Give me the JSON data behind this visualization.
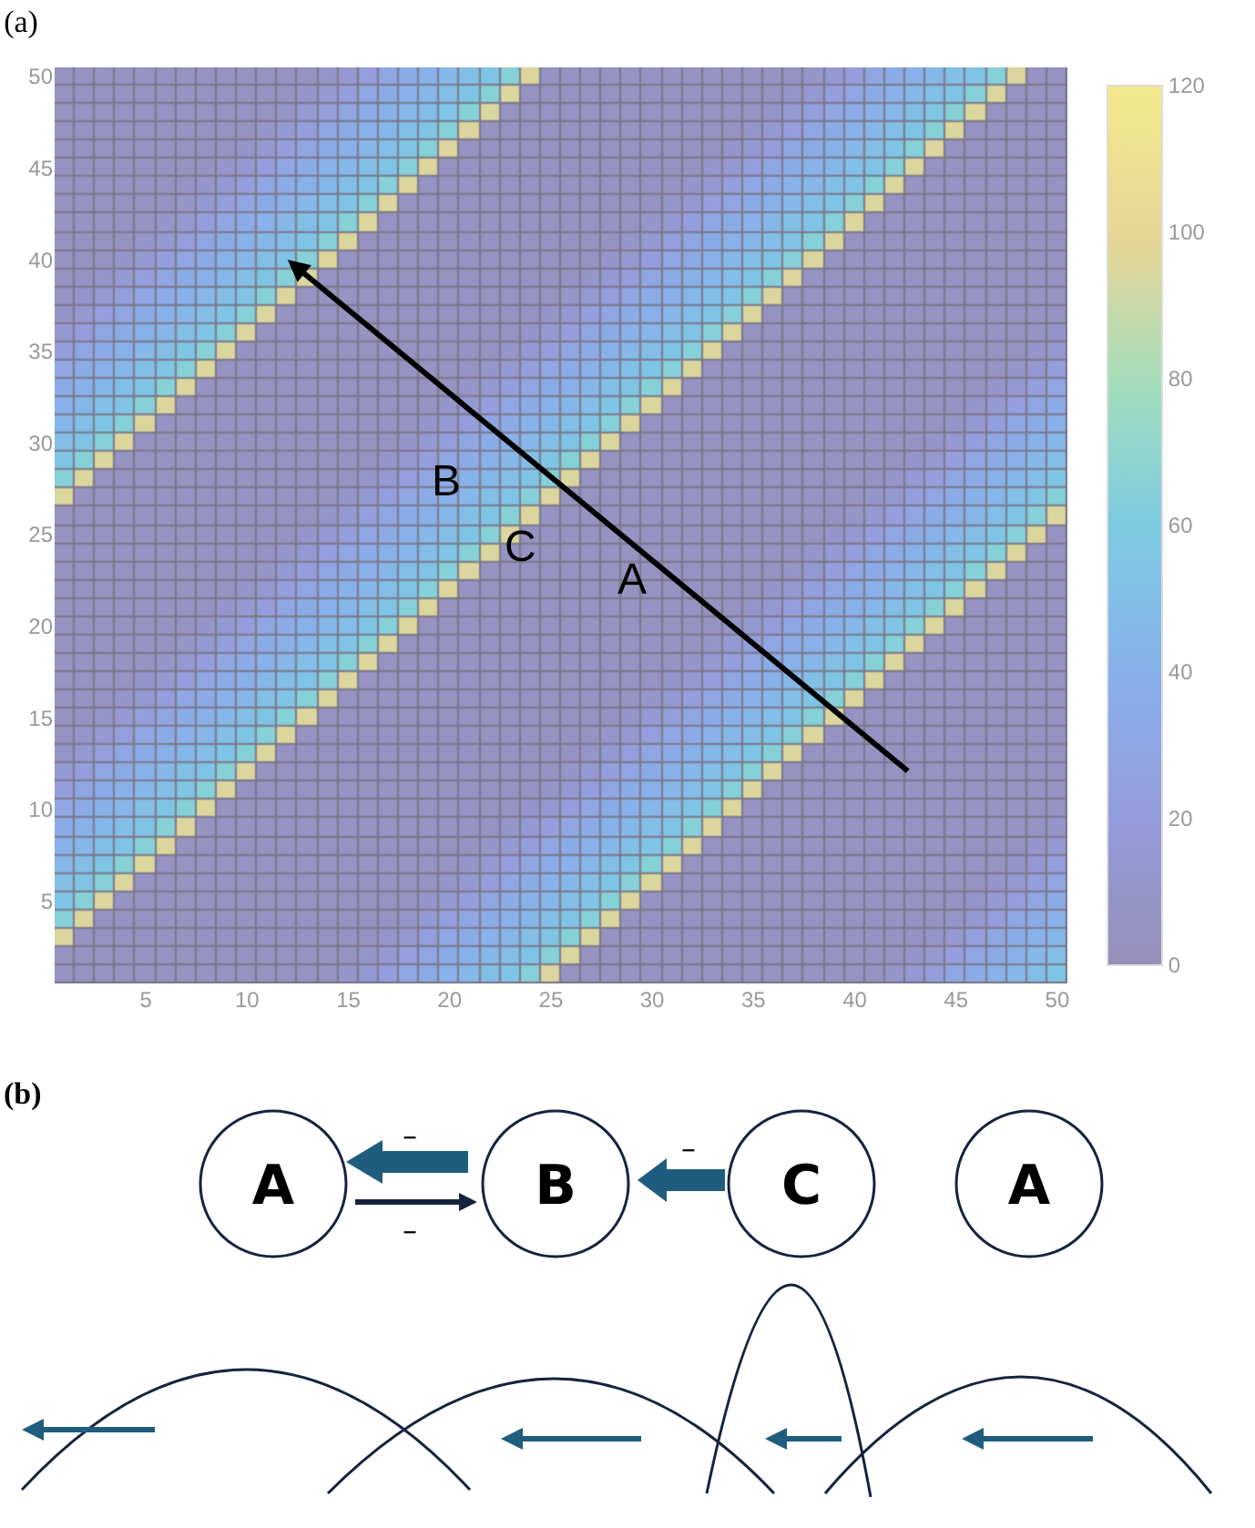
{
  "chart_data": [
    {
      "type": "heatmap",
      "title": "(a)",
      "categories": [
        null,
        null,
        null,
        null,
        "5",
        null,
        null,
        null,
        null,
        "10",
        null,
        null,
        null,
        null,
        "15",
        null,
        null,
        null,
        null,
        "20",
        null,
        null,
        null,
        null,
        "25",
        null,
        null,
        null,
        null,
        "30",
        null,
        null,
        null,
        null,
        "35",
        null,
        null,
        null,
        null,
        "40",
        null,
        null,
        null,
        null,
        "45",
        null,
        null,
        null,
        null,
        "50"
      ],
      "y_categories": [
        "50",
        null,
        null,
        null,
        null,
        "45",
        null,
        null,
        null,
        null,
        "40",
        null,
        null,
        null,
        null,
        "35",
        null,
        null,
        null,
        null,
        "30",
        null,
        null,
        null,
        null,
        "25",
        null,
        null,
        null,
        null,
        "20",
        null,
        null,
        null,
        null,
        "15",
        null,
        null,
        null,
        null,
        "10",
        null,
        null,
        null,
        null,
        "5",
        null,
        null,
        null,
        null
      ],
      "clim": [
        0,
        120
      ],
      "cticks": [
        0,
        20,
        40,
        60,
        80,
        100,
        120
      ],
      "annotations": [
        "B",
        "C",
        "A"
      ],
      "cells": [
        [
          5,
          5,
          5,
          5,
          5,
          5,
          5,
          5,
          5,
          5,
          5,
          5,
          5,
          10,
          15,
          22,
          30,
          35,
          40,
          45,
          50,
          55,
          65,
          95,
          5,
          5,
          5,
          5,
          5,
          5,
          5,
          5,
          5,
          5,
          5,
          5,
          5,
          10,
          15,
          22,
          30,
          35,
          40,
          45,
          50,
          55,
          65,
          95,
          5,
          5
        ],
        [
          5,
          5,
          5,
          5,
          5,
          5,
          5,
          5,
          5,
          5,
          5,
          5,
          10,
          15,
          22,
          30,
          35,
          40,
          45,
          50,
          55,
          65,
          95,
          5,
          5,
          5,
          5,
          5,
          5,
          5,
          5,
          5,
          5,
          5,
          5,
          5,
          10,
          15,
          22,
          30,
          35,
          40,
          45,
          50,
          55,
          65,
          95,
          5,
          5,
          5
        ],
        [
          5,
          5,
          5,
          5,
          5,
          5,
          5,
          5,
          5,
          5,
          5,
          10,
          15,
          22,
          30,
          35,
          40,
          45,
          50,
          55,
          65,
          95,
          5,
          5,
          5,
          5,
          5,
          5,
          5,
          5,
          5,
          5,
          5,
          5,
          5,
          10,
          15,
          22,
          30,
          35,
          40,
          45,
          50,
          55,
          65,
          95,
          5,
          5,
          5,
          5
        ],
        [
          5,
          5,
          5,
          5,
          5,
          5,
          5,
          5,
          5,
          5,
          10,
          15,
          22,
          30,
          35,
          40,
          45,
          50,
          55,
          65,
          95,
          5,
          5,
          5,
          5,
          5,
          5,
          5,
          5,
          5,
          5,
          5,
          5,
          5,
          10,
          15,
          22,
          30,
          35,
          40,
          45,
          50,
          55,
          65,
          95,
          5,
          5,
          5,
          5,
          5
        ],
        [
          5,
          5,
          5,
          5,
          5,
          5,
          5,
          5,
          5,
          10,
          15,
          22,
          30,
          35,
          40,
          45,
          50,
          55,
          65,
          95,
          5,
          5,
          5,
          5,
          5,
          5,
          5,
          5,
          5,
          5,
          5,
          5,
          5,
          10,
          15,
          22,
          30,
          35,
          40,
          45,
          50,
          55,
          65,
          95,
          5,
          5,
          5,
          5,
          5,
          5
        ],
        [
          5,
          5,
          5,
          5,
          5,
          5,
          5,
          5,
          10,
          15,
          22,
          30,
          35,
          40,
          45,
          50,
          55,
          65,
          95,
          5,
          5,
          5,
          5,
          5,
          5,
          5,
          5,
          5,
          5,
          5,
          5,
          5,
          10,
          15,
          22,
          30,
          35,
          40,
          45,
          50,
          55,
          65,
          95,
          5,
          5,
          5,
          5,
          5,
          5,
          5
        ],
        [
          5,
          5,
          5,
          5,
          5,
          5,
          5,
          10,
          15,
          22,
          30,
          35,
          40,
          45,
          50,
          55,
          65,
          95,
          5,
          5,
          5,
          5,
          5,
          5,
          5,
          5,
          5,
          5,
          5,
          5,
          5,
          10,
          15,
          22,
          30,
          35,
          40,
          45,
          50,
          55,
          65,
          95,
          5,
          5,
          5,
          5,
          5,
          5,
          5,
          5
        ],
        [
          5,
          5,
          5,
          5,
          5,
          5,
          10,
          15,
          22,
          30,
          35,
          40,
          45,
          50,
          55,
          65,
          95,
          5,
          5,
          5,
          5,
          5,
          5,
          5,
          5,
          5,
          5,
          5,
          5,
          5,
          10,
          15,
          22,
          30,
          35,
          40,
          45,
          50,
          55,
          65,
          95,
          5,
          5,
          5,
          5,
          5,
          5,
          5,
          5,
          5
        ],
        [
          5,
          5,
          5,
          5,
          5,
          10,
          15,
          22,
          30,
          35,
          40,
          45,
          50,
          55,
          65,
          95,
          5,
          5,
          5,
          5,
          5,
          5,
          5,
          5,
          5,
          5,
          5,
          5,
          5,
          10,
          15,
          22,
          30,
          35,
          40,
          45,
          50,
          55,
          65,
          95,
          5,
          5,
          5,
          5,
          5,
          5,
          5,
          5,
          5,
          5
        ],
        [
          5,
          5,
          5,
          5,
          10,
          15,
          22,
          30,
          35,
          40,
          45,
          50,
          55,
          65,
          95,
          5,
          5,
          5,
          5,
          5,
          5,
          5,
          5,
          5,
          5,
          5,
          5,
          5,
          10,
          15,
          22,
          30,
          35,
          40,
          45,
          50,
          55,
          65,
          95,
          5,
          5,
          5,
          5,
          5,
          5,
          5,
          5,
          5,
          5,
          5
        ],
        [
          5,
          5,
          5,
          10,
          15,
          22,
          30,
          35,
          40,
          45,
          50,
          55,
          65,
          95,
          5,
          5,
          5,
          5,
          5,
          5,
          5,
          5,
          5,
          5,
          5,
          5,
          5,
          10,
          15,
          22,
          30,
          35,
          40,
          45,
          50,
          55,
          65,
          95,
          5,
          5,
          5,
          5,
          5,
          5,
          5,
          5,
          5,
          5,
          5,
          5
        ],
        [
          5,
          5,
          10,
          15,
          22,
          30,
          35,
          40,
          45,
          50,
          55,
          65,
          95,
          5,
          5,
          5,
          5,
          5,
          5,
          5,
          5,
          5,
          5,
          5,
          5,
          5,
          10,
          15,
          22,
          30,
          35,
          40,
          45,
          50,
          55,
          65,
          95,
          5,
          5,
          5,
          5,
          5,
          5,
          5,
          5,
          5,
          5,
          5,
          5,
          5
        ],
        [
          5,
          10,
          15,
          22,
          30,
          35,
          40,
          45,
          50,
          55,
          65,
          95,
          5,
          5,
          5,
          5,
          5,
          5,
          5,
          5,
          5,
          5,
          5,
          5,
          5,
          10,
          15,
          22,
          30,
          35,
          40,
          45,
          50,
          55,
          65,
          95,
          5,
          5,
          5,
          5,
          5,
          5,
          5,
          5,
          5,
          5,
          5,
          5,
          5,
          5
        ],
        [
          10,
          15,
          22,
          30,
          35,
          40,
          45,
          50,
          55,
          65,
          95,
          5,
          5,
          5,
          5,
          5,
          5,
          5,
          5,
          5,
          5,
          5,
          5,
          5,
          10,
          15,
          22,
          30,
          35,
          40,
          45,
          50,
          55,
          65,
          95,
          5,
          5,
          5,
          5,
          5,
          5,
          5,
          5,
          5,
          5,
          5,
          5,
          5,
          5,
          5
        ],
        [
          15,
          22,
          30,
          35,
          40,
          45,
          50,
          55,
          65,
          95,
          5,
          5,
          5,
          5,
          5,
          5,
          5,
          5,
          5,
          5,
          5,
          5,
          5,
          10,
          15,
          22,
          30,
          35,
          40,
          45,
          50,
          55,
          65,
          95,
          5,
          5,
          5,
          5,
          5,
          5,
          5,
          5,
          5,
          5,
          5,
          5,
          5,
          5,
          5,
          10
        ],
        [
          22,
          30,
          35,
          40,
          45,
          50,
          55,
          65,
          95,
          5,
          5,
          5,
          5,
          5,
          5,
          5,
          5,
          5,
          5,
          5,
          5,
          5,
          10,
          15,
          22,
          30,
          35,
          40,
          45,
          50,
          55,
          65,
          95,
          5,
          5,
          5,
          5,
          5,
          5,
          5,
          5,
          5,
          5,
          5,
          5,
          5,
          5,
          5,
          10,
          15
        ],
        [
          30,
          35,
          40,
          45,
          50,
          55,
          65,
          95,
          5,
          5,
          5,
          5,
          5,
          5,
          5,
          5,
          5,
          5,
          5,
          5,
          5,
          10,
          15,
          22,
          30,
          35,
          40,
          45,
          50,
          55,
          65,
          95,
          5,
          5,
          5,
          5,
          5,
          5,
          5,
          5,
          5,
          5,
          5,
          5,
          5,
          5,
          5,
          10,
          15,
          22
        ],
        [
          35,
          40,
          45,
          50,
          55,
          65,
          95,
          5,
          5,
          5,
          5,
          5,
          5,
          5,
          5,
          5,
          5,
          5,
          5,
          5,
          10,
          15,
          22,
          30,
          35,
          40,
          45,
          50,
          55,
          65,
          95,
          5,
          5,
          5,
          5,
          5,
          5,
          5,
          5,
          5,
          5,
          5,
          5,
          5,
          5,
          5,
          10,
          15,
          22,
          30
        ],
        [
          40,
          45,
          50,
          55,
          65,
          95,
          5,
          5,
          5,
          5,
          5,
          5,
          5,
          5,
          5,
          5,
          5,
          5,
          5,
          10,
          15,
          22,
          30,
          35,
          40,
          45,
          50,
          55,
          65,
          95,
          5,
          5,
          5,
          5,
          5,
          5,
          5,
          5,
          5,
          5,
          5,
          5,
          5,
          5,
          5,
          10,
          15,
          22,
          30,
          35
        ],
        [
          45,
          50,
          55,
          65,
          95,
          5,
          5,
          5,
          5,
          5,
          5,
          5,
          5,
          5,
          5,
          5,
          5,
          5,
          10,
          15,
          22,
          30,
          35,
          40,
          45,
          50,
          55,
          65,
          95,
          5,
          5,
          5,
          5,
          5,
          5,
          5,
          5,
          5,
          5,
          5,
          5,
          5,
          5,
          5,
          10,
          15,
          22,
          30,
          35,
          40
        ],
        [
          50,
          55,
          65,
          95,
          5,
          5,
          5,
          5,
          5,
          5,
          5,
          5,
          5,
          5,
          5,
          5,
          5,
          10,
          15,
          22,
          30,
          35,
          40,
          45,
          50,
          55,
          65,
          95,
          5,
          5,
          5,
          5,
          5,
          5,
          5,
          5,
          5,
          5,
          5,
          5,
          5,
          5,
          5,
          10,
          15,
          22,
          30,
          35,
          40,
          45
        ],
        [
          55,
          65,
          95,
          5,
          5,
          5,
          5,
          5,
          5,
          5,
          5,
          5,
          5,
          5,
          5,
          5,
          10,
          15,
          22,
          30,
          35,
          40,
          45,
          50,
          55,
          65,
          95,
          5,
          5,
          5,
          5,
          5,
          5,
          5,
          5,
          5,
          5,
          5,
          5,
          5,
          5,
          5,
          10,
          15,
          22,
          30,
          35,
          40,
          45,
          50
        ],
        [
          65,
          95,
          5,
          5,
          5,
          5,
          5,
          5,
          5,
          5,
          5,
          5,
          5,
          5,
          5,
          10,
          15,
          22,
          30,
          35,
          40,
          45,
          50,
          55,
          65,
          95,
          5,
          5,
          5,
          5,
          5,
          5,
          5,
          5,
          5,
          5,
          5,
          5,
          5,
          5,
          5,
          10,
          15,
          22,
          30,
          35,
          40,
          45,
          50,
          55
        ],
        [
          95,
          5,
          5,
          5,
          5,
          5,
          5,
          5,
          5,
          5,
          5,
          5,
          5,
          5,
          10,
          15,
          22,
          30,
          35,
          40,
          45,
          50,
          55,
          65,
          95,
          5,
          5,
          5,
          5,
          5,
          5,
          5,
          5,
          5,
          5,
          5,
          5,
          5,
          5,
          5,
          10,
          15,
          22,
          30,
          35,
          40,
          45,
          50,
          55,
          65
        ],
        [
          5,
          5,
          5,
          5,
          5,
          5,
          5,
          5,
          5,
          5,
          5,
          5,
          5,
          10,
          15,
          22,
          30,
          35,
          40,
          45,
          50,
          55,
          65,
          95,
          5,
          5,
          5,
          5,
          5,
          5,
          5,
          5,
          5,
          5,
          5,
          5,
          5,
          5,
          5,
          10,
          15,
          22,
          30,
          35,
          40,
          45,
          50,
          55,
          65,
          95
        ],
        [
          5,
          5,
          5,
          5,
          5,
          5,
          5,
          5,
          5,
          5,
          5,
          5,
          10,
          15,
          22,
          30,
          35,
          40,
          45,
          50,
          55,
          65,
          95,
          5,
          5,
          5,
          5,
          5,
          5,
          5,
          5,
          5,
          5,
          5,
          5,
          5,
          5,
          5,
          10,
          15,
          22,
          30,
          35,
          40,
          45,
          50,
          55,
          65,
          95,
          5
        ],
        [
          5,
          5,
          5,
          5,
          5,
          5,
          5,
          5,
          5,
          5,
          5,
          10,
          15,
          22,
          30,
          35,
          40,
          45,
          50,
          55,
          65,
          95,
          5,
          5,
          5,
          5,
          5,
          5,
          5,
          5,
          5,
          5,
          5,
          5,
          5,
          5,
          5,
          10,
          15,
          22,
          30,
          35,
          40,
          45,
          50,
          55,
          65,
          95,
          5,
          5
        ],
        [
          5,
          5,
          5,
          5,
          5,
          5,
          5,
          5,
          5,
          5,
          10,
          15,
          22,
          30,
          35,
          40,
          45,
          50,
          55,
          65,
          95,
          5,
          5,
          5,
          5,
          5,
          5,
          5,
          5,
          5,
          5,
          5,
          5,
          5,
          5,
          5,
          10,
          15,
          22,
          30,
          35,
          40,
          45,
          50,
          55,
          65,
          95,
          5,
          5,
          5
        ],
        [
          5,
          5,
          5,
          5,
          5,
          5,
          5,
          5,
          5,
          10,
          15,
          22,
          30,
          35,
          40,
          45,
          50,
          55,
          65,
          95,
          5,
          5,
          5,
          5,
          5,
          5,
          5,
          5,
          5,
          5,
          5,
          5,
          5,
          5,
          5,
          10,
          15,
          22,
          30,
          35,
          40,
          45,
          50,
          55,
          65,
          95,
          5,
          5,
          5,
          5
        ],
        [
          5,
          5,
          5,
          5,
          5,
          5,
          5,
          5,
          10,
          15,
          22,
          30,
          35,
          40,
          45,
          50,
          55,
          65,
          95,
          5,
          5,
          5,
          5,
          5,
          5,
          5,
          5,
          5,
          5,
          5,
          5,
          5,
          5,
          5,
          10,
          15,
          22,
          30,
          35,
          40,
          45,
          50,
          55,
          65,
          95,
          5,
          5,
          5,
          5,
          5
        ],
        [
          5,
          5,
          5,
          5,
          5,
          5,
          5,
          10,
          15,
          22,
          30,
          35,
          40,
          45,
          50,
          55,
          65,
          95,
          5,
          5,
          5,
          5,
          5,
          5,
          5,
          5,
          5,
          5,
          5,
          5,
          5,
          5,
          5,
          10,
          15,
          22,
          30,
          35,
          40,
          45,
          50,
          55,
          65,
          95,
          5,
          5,
          5,
          5,
          5,
          5
        ],
        [
          5,
          5,
          5,
          5,
          5,
          5,
          10,
          15,
          22,
          30,
          35,
          40,
          45,
          50,
          55,
          65,
          95,
          5,
          5,
          5,
          5,
          5,
          5,
          5,
          5,
          5,
          5,
          5,
          5,
          5,
          5,
          5,
          10,
          15,
          22,
          30,
          35,
          40,
          45,
          50,
          55,
          65,
          95,
          5,
          5,
          5,
          5,
          5,
          5,
          5
        ],
        [
          5,
          5,
          5,
          5,
          5,
          10,
          15,
          22,
          30,
          35,
          40,
          45,
          50,
          55,
          65,
          95,
          5,
          5,
          5,
          5,
          5,
          5,
          5,
          5,
          5,
          5,
          5,
          5,
          5,
          5,
          5,
          10,
          15,
          22,
          30,
          35,
          40,
          45,
          50,
          55,
          65,
          95,
          5,
          5,
          5,
          5,
          5,
          5,
          5,
          5
        ],
        [
          5,
          5,
          5,
          5,
          10,
          15,
          22,
          30,
          35,
          40,
          45,
          50,
          55,
          65,
          95,
          5,
          5,
          5,
          5,
          5,
          5,
          5,
          5,
          5,
          5,
          5,
          5,
          5,
          5,
          5,
          10,
          15,
          22,
          30,
          35,
          40,
          45,
          50,
          55,
          65,
          95,
          5,
          5,
          5,
          5,
          5,
          5,
          5,
          5,
          5
        ],
        [
          5,
          5,
          5,
          10,
          15,
          22,
          30,
          35,
          40,
          45,
          50,
          55,
          65,
          95,
          5,
          5,
          5,
          5,
          5,
          5,
          5,
          5,
          5,
          5,
          5,
          5,
          5,
          5,
          5,
          10,
          15,
          22,
          30,
          35,
          40,
          45,
          50,
          55,
          65,
          95,
          5,
          5,
          5,
          5,
          5,
          5,
          5,
          5,
          5,
          5
        ],
        [
          5,
          5,
          10,
          15,
          22,
          30,
          35,
          40,
          45,
          50,
          55,
          65,
          95,
          5,
          5,
          5,
          5,
          5,
          5,
          5,
          5,
          5,
          5,
          5,
          5,
          5,
          5,
          5,
          10,
          15,
          22,
          30,
          35,
          40,
          45,
          50,
          55,
          65,
          95,
          5,
          5,
          5,
          5,
          5,
          5,
          5,
          5,
          5,
          5,
          5
        ],
        [
          5,
          10,
          15,
          22,
          30,
          35,
          40,
          45,
          50,
          55,
          65,
          95,
          5,
          5,
          5,
          5,
          5,
          5,
          5,
          5,
          5,
          5,
          5,
          5,
          5,
          5,
          5,
          10,
          15,
          22,
          30,
          35,
          40,
          45,
          50,
          55,
          65,
          95,
          5,
          5,
          5,
          5,
          5,
          5,
          5,
          5,
          5,
          5,
          5,
          5
        ],
        [
          10,
          15,
          22,
          30,
          35,
          40,
          45,
          50,
          55,
          65,
          95,
          5,
          5,
          5,
          5,
          5,
          5,
          5,
          5,
          5,
          5,
          5,
          5,
          5,
          5,
          5,
          10,
          15,
          22,
          30,
          35,
          40,
          45,
          50,
          55,
          65,
          95,
          5,
          5,
          5,
          5,
          5,
          5,
          5,
          5,
          5,
          5,
          5,
          5,
          5
        ],
        [
          15,
          22,
          30,
          35,
          40,
          45,
          50,
          55,
          65,
          95,
          5,
          5,
          5,
          5,
          5,
          5,
          5,
          5,
          5,
          5,
          5,
          5,
          5,
          5,
          5,
          10,
          15,
          22,
          30,
          35,
          40,
          45,
          50,
          55,
          65,
          95,
          5,
          5,
          5,
          5,
          5,
          5,
          5,
          5,
          5,
          5,
          5,
          5,
          5,
          5
        ],
        [
          22,
          30,
          35,
          40,
          45,
          50,
          55,
          65,
          95,
          5,
          5,
          5,
          5,
          5,
          5,
          5,
          5,
          5,
          5,
          5,
          5,
          5,
          5,
          5,
          10,
          15,
          22,
          30,
          35,
          40,
          45,
          50,
          55,
          65,
          95,
          5,
          5,
          5,
          5,
          5,
          5,
          5,
          5,
          5,
          5,
          5,
          5,
          5,
          5,
          5
        ],
        [
          30,
          35,
          40,
          45,
          50,
          55,
          65,
          95,
          5,
          5,
          5,
          5,
          5,
          5,
          5,
          5,
          5,
          5,
          5,
          5,
          5,
          5,
          5,
          10,
          15,
          22,
          30,
          35,
          40,
          45,
          50,
          55,
          65,
          95,
          5,
          5,
          5,
          5,
          5,
          5,
          5,
          5,
          5,
          5,
          5,
          5,
          5,
          5,
          5,
          5
        ],
        [
          35,
          40,
          45,
          50,
          55,
          65,
          95,
          5,
          5,
          5,
          5,
          5,
          5,
          5,
          5,
          5,
          5,
          5,
          5,
          5,
          5,
          5,
          10,
          15,
          22,
          30,
          35,
          40,
          45,
          50,
          55,
          65,
          95,
          5,
          5,
          5,
          5,
          5,
          5,
          5,
          5,
          5,
          5,
          5,
          5,
          5,
          5,
          5,
          5,
          10
        ],
        [
          40,
          45,
          50,
          55,
          65,
          95,
          5,
          5,
          5,
          5,
          5,
          5,
          5,
          5,
          5,
          5,
          5,
          5,
          5,
          5,
          5,
          10,
          15,
          22,
          30,
          35,
          40,
          45,
          50,
          55,
          65,
          95,
          5,
          5,
          5,
          5,
          5,
          5,
          5,
          5,
          5,
          5,
          5,
          5,
          5,
          5,
          5,
          5,
          10,
          15
        ],
        [
          45,
          50,
          55,
          65,
          95,
          5,
          5,
          5,
          5,
          5,
          5,
          5,
          5,
          5,
          5,
          5,
          5,
          5,
          5,
          5,
          10,
          15,
          22,
          30,
          35,
          40,
          45,
          50,
          55,
          65,
          95,
          5,
          5,
          5,
          5,
          5,
          5,
          5,
          5,
          5,
          5,
          5,
          5,
          5,
          5,
          5,
          5,
          10,
          15,
          22
        ],
        [
          50,
          55,
          65,
          95,
          5,
          5,
          5,
          5,
          5,
          5,
          5,
          5,
          5,
          5,
          5,
          5,
          5,
          5,
          5,
          10,
          15,
          22,
          30,
          35,
          40,
          45,
          50,
          55,
          65,
          95,
          5,
          5,
          5,
          5,
          5,
          5,
          5,
          5,
          5,
          5,
          5,
          5,
          5,
          5,
          5,
          5,
          10,
          15,
          22,
          30
        ],
        [
          55,
          65,
          95,
          5,
          5,
          5,
          5,
          5,
          5,
          5,
          5,
          5,
          5,
          5,
          5,
          5,
          5,
          5,
          10,
          15,
          22,
          30,
          35,
          40,
          45,
          50,
          55,
          65,
          95,
          5,
          5,
          5,
          5,
          5,
          5,
          5,
          5,
          5,
          5,
          5,
          5,
          5,
          5,
          5,
          5,
          10,
          15,
          22,
          30,
          35
        ],
        [
          65,
          95,
          5,
          5,
          5,
          5,
          5,
          5,
          5,
          5,
          5,
          5,
          5,
          5,
          5,
          5,
          5,
          10,
          15,
          22,
          30,
          35,
          40,
          45,
          50,
          55,
          65,
          95,
          5,
          5,
          5,
          5,
          5,
          5,
          5,
          5,
          5,
          5,
          5,
          5,
          5,
          5,
          5,
          5,
          10,
          15,
          22,
          30,
          35,
          40
        ],
        [
          95,
          5,
          5,
          5,
          5,
          5,
          5,
          5,
          5,
          5,
          5,
          5,
          5,
          5,
          5,
          5,
          10,
          15,
          22,
          30,
          35,
          40,
          45,
          50,
          55,
          65,
          95,
          5,
          5,
          5,
          5,
          5,
          5,
          5,
          5,
          5,
          5,
          5,
          5,
          5,
          5,
          5,
          5,
          10,
          15,
          22,
          30,
          35,
          40,
          45
        ],
        [
          5,
          5,
          5,
          5,
          5,
          5,
          5,
          5,
          5,
          5,
          5,
          5,
          5,
          5,
          5,
          10,
          15,
          22,
          30,
          35,
          40,
          45,
          50,
          55,
          65,
          95,
          5,
          5,
          5,
          5,
          5,
          5,
          5,
          5,
          5,
          5,
          5,
          5,
          5,
          5,
          5,
          5,
          10,
          15,
          22,
          30,
          35,
          40,
          45,
          50
        ],
        [
          5,
          5,
          5,
          5,
          5,
          5,
          5,
          5,
          5,
          5,
          5,
          5,
          5,
          5,
          10,
          15,
          22,
          30,
          35,
          40,
          45,
          50,
          55,
          65,
          95,
          5,
          5,
          5,
          5,
          5,
          5,
          5,
          5,
          5,
          5,
          5,
          5,
          5,
          5,
          5,
          5,
          10,
          15,
          22,
          30,
          35,
          40,
          45,
          50,
          55
        ]
      ]
    },
    {
      "type": "other",
      "title": "(b)",
      "annotations": [
        "A",
        "B",
        "C",
        "A",
        "–",
        "–",
        "–"
      ]
    }
  ]
}
